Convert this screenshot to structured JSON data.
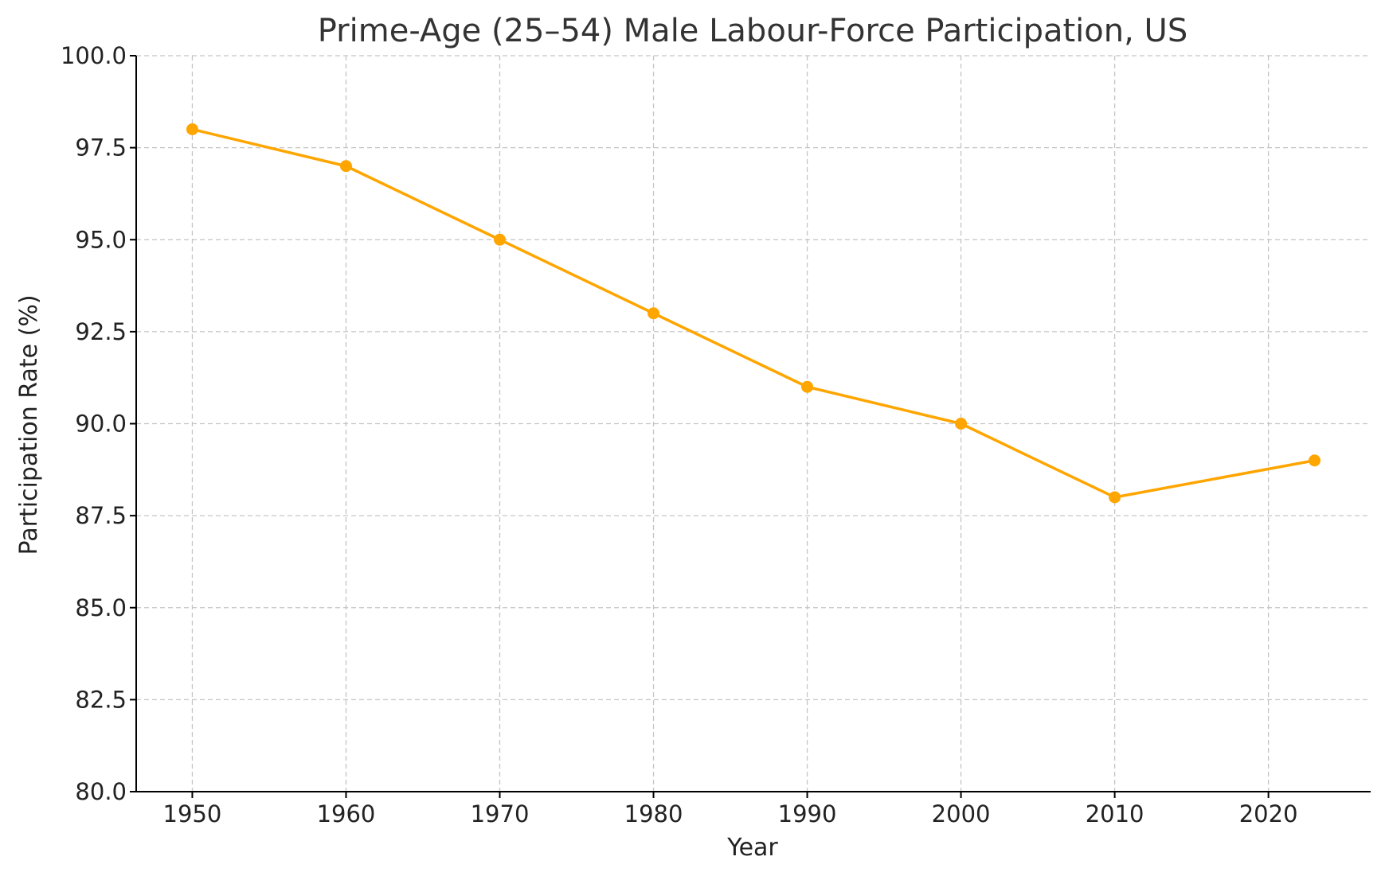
{
  "chart_data": {
    "type": "line",
    "title": "Prime-Age (25–54) Male Labour-Force Participation, US",
    "xlabel": "Year",
    "ylabel": "Participation Rate (%)",
    "x": [
      1950,
      1960,
      1970,
      1980,
      1990,
      2000,
      2010,
      2023
    ],
    "series": [
      {
        "values": [
          98.0,
          97.0,
          95.0,
          93.0,
          91.0,
          90.0,
          88.0,
          89.0
        ],
        "color": "#FFA500",
        "marker": "circle"
      }
    ],
    "xlim": [
      1946.35,
      2026.65
    ],
    "ylim": [
      80.0,
      100.0
    ],
    "xticks": [
      "1950",
      "1960",
      "1970",
      "1980",
      "1990",
      "2000",
      "2010",
      "2020"
    ],
    "yticks": [
      "80.0",
      "82.5",
      "85.0",
      "87.5",
      "90.0",
      "92.5",
      "95.0",
      "97.5",
      "100.0"
    ],
    "grid": true,
    "legend": false
  }
}
